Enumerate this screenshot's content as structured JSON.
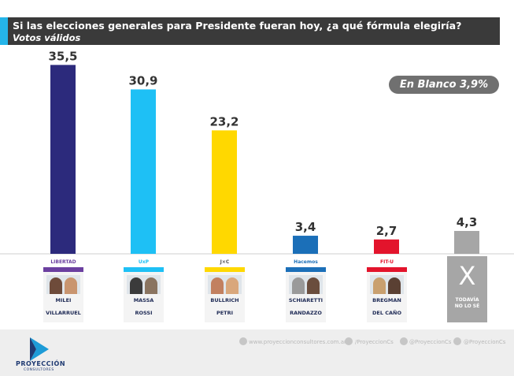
{
  "header": {
    "question": "Si las elecciones generales para Presidente fueran hoy, ¿a qué fórmula elegiría?",
    "subtitle": "Votos válidos"
  },
  "blank_badge": "En Blanco 3,9%",
  "chart_data": {
    "type": "bar",
    "title": "Si las elecciones generales para Presidente fueran hoy, ¿a qué fórmula elegiría?",
    "subtitle": "Votos válidos",
    "categories": [
      "Milei - Villarruel",
      "Massa - Rossi",
      "Bullrich - Petri",
      "Schiaretti - Randazzo",
      "Bregman - Del Caño",
      "Todavía no lo sé"
    ],
    "values": [
      35.5,
      30.9,
      23.2,
      3.4,
      2.7,
      4.3
    ],
    "value_labels": [
      "35,5",
      "30,9",
      "23,2",
      "3,4",
      "2,7",
      "4,3"
    ],
    "colors": [
      "#2c2a7c",
      "#1ec0f5",
      "#ffd800",
      "#1b6fb8",
      "#e3142c",
      "#a6a6a6"
    ],
    "ylim": [
      0,
      36
    ]
  },
  "candidates": [
    {
      "logo": "LIBERTAD",
      "first": "MILEI",
      "second": "VILLARRUEL",
      "color": "#6b3fa0"
    },
    {
      "logo": "UxP",
      "first": "MASSA",
      "second": "ROSSI",
      "color": "#1ec0f5"
    },
    {
      "logo": "J×C",
      "first": "BULLRICH",
      "second": "PETRI",
      "color": "#ffd800"
    },
    {
      "logo": "Hacemos",
      "first": "SCHIARETTI",
      "second": "RANDAZZO",
      "color": "#1b6fb8"
    },
    {
      "logo": "FIT-U",
      "first": "BREGMAN",
      "second": "DEL CAÑO",
      "color": "#e3142c"
    }
  ],
  "undecided": {
    "mark": "X",
    "label_line1": "TODAVÍA",
    "label_line2": "NO LO SÉ"
  },
  "footer": {
    "brand": "PROYECCIÓN",
    "tagline": "CONSULTORES",
    "website": "www.proyeccionconsultores.com.ar",
    "facebook": "/ProyeccionCs",
    "twitter": "@ProyeccionCs",
    "instagram": "@ProyeccionCs"
  }
}
